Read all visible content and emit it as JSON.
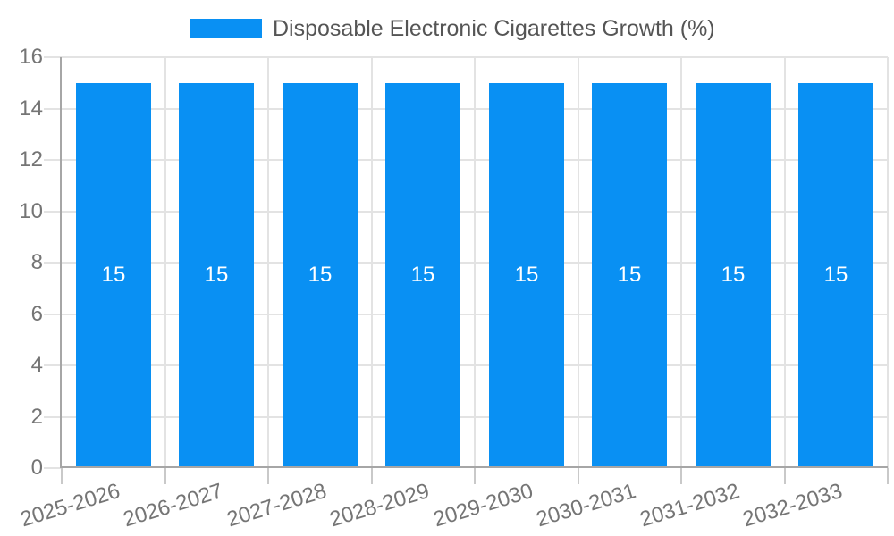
{
  "legend": {
    "label": "Disposable Electronic Cigarettes Growth (%)"
  },
  "colors": {
    "bar": "#0990f3",
    "grid": "#e3e3e3",
    "axis": "#a6a6a6",
    "tick": "#c9c9c9",
    "axis_label": "#757575",
    "legend_text": "#555555",
    "value_label": "#ffffff",
    "background": "#ffffff"
  },
  "chart_data": {
    "type": "bar",
    "title": "Disposable Electronic Cigarettes Growth (%)",
    "categories": [
      "2025-2026",
      "2026-2027",
      "2027-2028",
      "2028-2029",
      "2029-2030",
      "2030-2031",
      "2031-2032",
      "2032-2033"
    ],
    "series": [
      {
        "name": "Disposable Electronic Cigarettes Growth (%)",
        "values": [
          15,
          15,
          15,
          15,
          15,
          15,
          15,
          15
        ]
      }
    ],
    "value_labels": [
      "15",
      "15",
      "15",
      "15",
      "15",
      "15",
      "15",
      "15"
    ],
    "xlabel": "",
    "ylabel": "",
    "ylim": [
      0,
      16
    ],
    "yticks": [
      0,
      2,
      4,
      6,
      8,
      10,
      12,
      14,
      16
    ],
    "grid": true,
    "legend_position": "top",
    "x_tick_rotation_deg": -17
  }
}
